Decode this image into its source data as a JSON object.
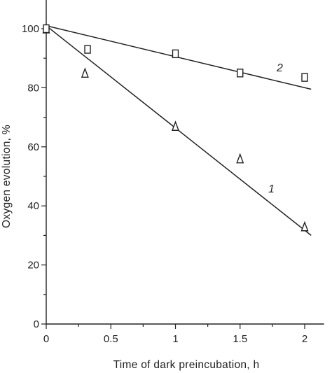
{
  "chart_data": {
    "type": "scatter",
    "xlabel": "Time of dark preincubation, h",
    "ylabel": "Oxygen evolution, %",
    "xlim": [
      0,
      2.15
    ],
    "ylim": [
      0,
      110
    ],
    "xticks": [
      0,
      0.5,
      1,
      1.5,
      2
    ],
    "xtick_labels": [
      "0",
      "0.5",
      "1",
      "1.5",
      "2"
    ],
    "yticks": [
      0,
      20,
      40,
      60,
      80,
      100
    ],
    "ytick_labels": [
      "0",
      "20",
      "40",
      "60",
      "80",
      "100"
    ],
    "grid": false,
    "series": [
      {
        "name": "1",
        "marker": "triangle",
        "points": [
          {
            "x": 0,
            "y": 100
          },
          {
            "x": 0.3,
            "y": 85
          },
          {
            "x": 1.0,
            "y": 67
          },
          {
            "x": 1.5,
            "y": 56
          },
          {
            "x": 2.0,
            "y": 33
          }
        ],
        "fit": {
          "x": [
            0,
            2.05
          ],
          "y": [
            101,
            30
          ]
        }
      },
      {
        "name": "2",
        "marker": "square",
        "points": [
          {
            "x": 0,
            "y": 100
          },
          {
            "x": 0.32,
            "y": 93
          },
          {
            "x": 1.0,
            "y": 91.5
          },
          {
            "x": 1.5,
            "y": 85
          },
          {
            "x": 2.0,
            "y": 83.5
          }
        ],
        "fit": {
          "x": [
            0,
            2.05
          ],
          "y": [
            101,
            79.5
          ]
        }
      }
    ]
  }
}
